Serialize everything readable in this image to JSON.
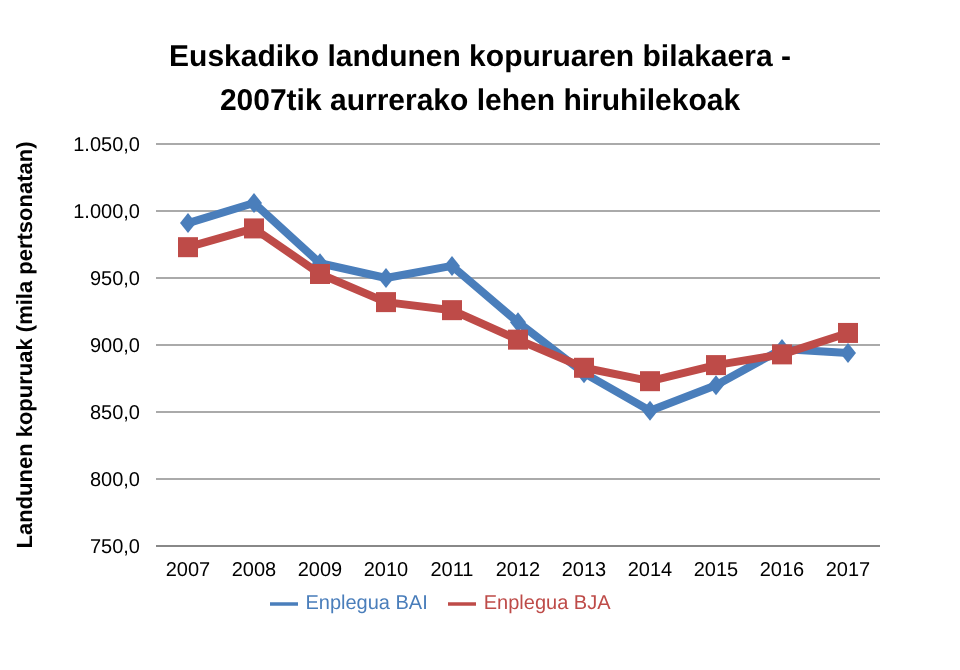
{
  "chart_data": {
    "type": "line",
    "title": "Euskadiko landunen kopuruaren bilakaera -\n2007tik aurrerako lehen hiruhilekoak",
    "ylabel": "Landunen kopuruak (mila pertsonatan)",
    "categories": [
      "2007",
      "2008",
      "2009",
      "2010",
      "2011",
      "2012",
      "2013",
      "2014",
      "2015",
      "2016",
      "2017"
    ],
    "series": [
      {
        "name": "Enplegua BAI",
        "color": "#4a7ebb",
        "marker": "diamond",
        "values": [
          991,
          1006,
          961,
          950,
          959,
          917,
          879,
          851,
          870,
          897,
          894
        ]
      },
      {
        "name": "Enplegua BJA",
        "color": "#be4b48",
        "marker": "square",
        "values": [
          973,
          987,
          953,
          932,
          926,
          904,
          883,
          873,
          885,
          893,
          909
        ]
      }
    ],
    "ylim": [
      750,
      1050
    ],
    "yticks": [
      {
        "value": 750,
        "label": "750,0"
      },
      {
        "value": 800,
        "label": "800,0"
      },
      {
        "value": 850,
        "label": "850,0"
      },
      {
        "value": 900,
        "label": "900,0"
      },
      {
        "value": 950,
        "label": "950,0"
      },
      {
        "value": 1000,
        "label": "1.000,0"
      },
      {
        "value": 1050,
        "label": "1.050,0"
      }
    ],
    "grid": "y",
    "legend": "bottom",
    "line_style": "solid"
  }
}
